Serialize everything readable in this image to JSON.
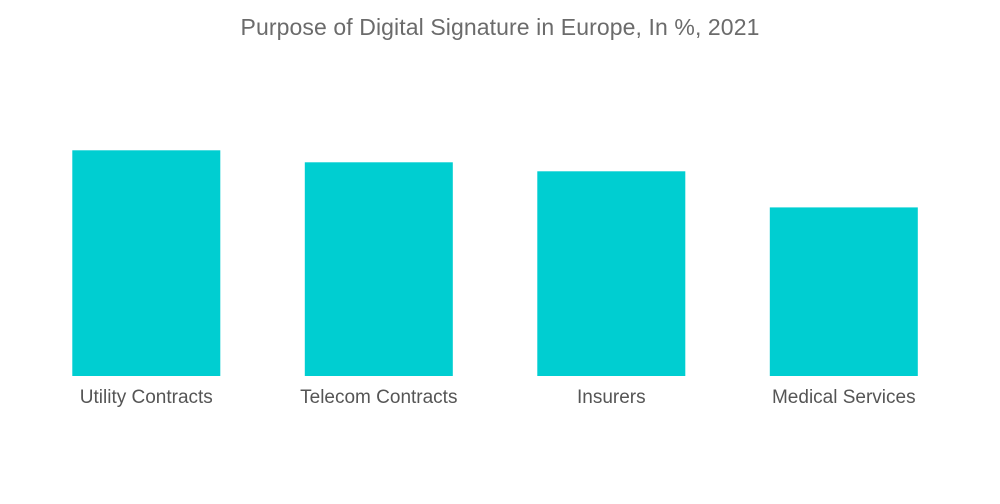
{
  "chart_data": {
    "type": "bar",
    "title": "Purpose of Digital Signature in Europe, In %, 2021",
    "categories": [
      "Utility Contracts",
      "Telecom Contracts",
      "Insurers",
      "Medical Services"
    ],
    "values": [
      75,
      71,
      68,
      56
    ],
    "xlabel": "",
    "ylabel": "",
    "ylim": [
      0,
      100
    ],
    "grid": false,
    "legend": "none",
    "bar_color": "#00CED1"
  }
}
